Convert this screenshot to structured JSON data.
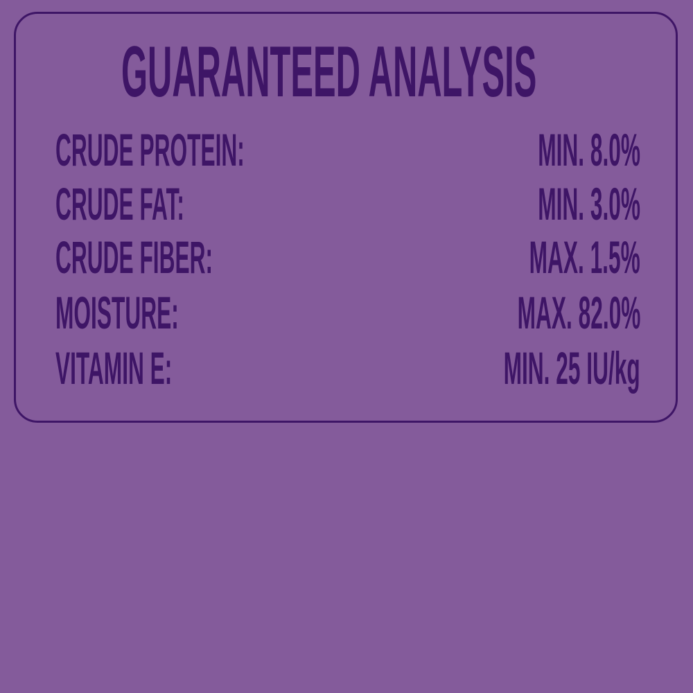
{
  "title": "GUARANTEED ANALYSIS",
  "rows": [
    {
      "label": "CRUDE PROTEIN:",
      "value": "MIN. 8.0%"
    },
    {
      "label": "CRUDE FAT:",
      "value": "MIN. 3.0%"
    },
    {
      "label": "CRUDE FIBER:",
      "value": "MAX. 1.5%"
    },
    {
      "label": "MOISTURE:",
      "value": "MAX. 82.0%"
    },
    {
      "label": "VITAMIN E:",
      "value": "MIN. 25 IU/kg"
    }
  ],
  "colors": {
    "background": "#845b9b",
    "text": "#3e1566"
  }
}
